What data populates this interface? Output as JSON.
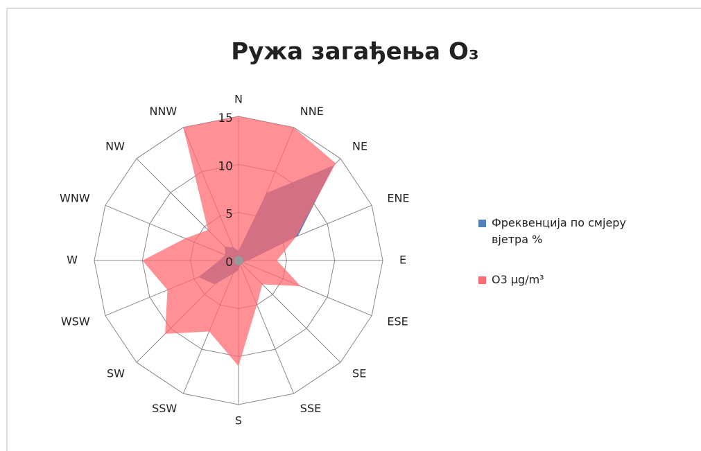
{
  "chart_data": {
    "type": "radar",
    "title": "Ружа загађења O₃",
    "categories": [
      "N",
      "NNE",
      "NE",
      "ENE",
      "E",
      "ESE",
      "SE",
      "SSE",
      "S",
      "SSW",
      "SW",
      "WSW",
      "W",
      "WNW",
      "NW",
      "NNW"
    ],
    "series": [
      {
        "name": "Фреквенција по смјеру вјетра %",
        "color": "#4f81bd",
        "values": [
          1,
          7.6,
          14,
          6.7,
          1,
          0.5,
          0.5,
          0.5,
          1,
          1.5,
          3.5,
          4.5,
          2,
          1.5,
          2,
          1.5
        ]
      },
      {
        "name": "O3 µg/m³",
        "color": "#ff6b72",
        "values": [
          15,
          15,
          14.3,
          6.5,
          4,
          7,
          3.5,
          5,
          11,
          8,
          10.8,
          8,
          10,
          6,
          4.5,
          15
        ]
      }
    ],
    "ylim": [
      0,
      15
    ],
    "yticks": [
      0,
      5,
      10,
      15
    ],
    "grid": true,
    "legend": "right"
  }
}
